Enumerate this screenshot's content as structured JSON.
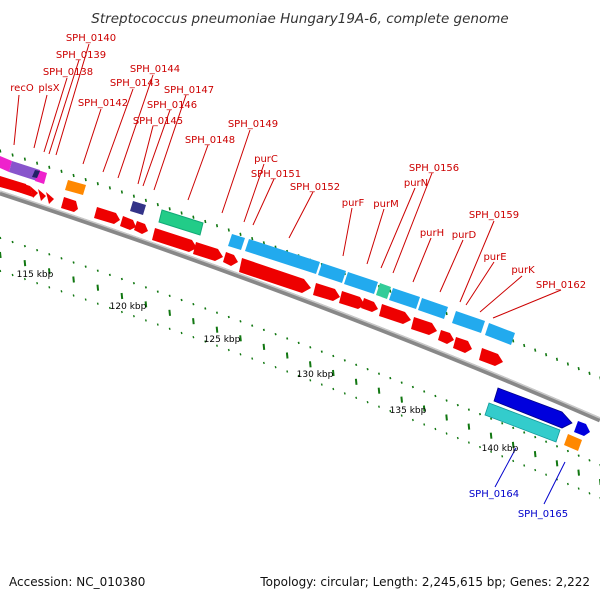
{
  "title": "Streptococcus pneumoniae Hungary19A-6, complete genome",
  "footer": {
    "accession": "Accession: NC_010380",
    "summary": "Topology: circular; Length: 2,245,615 bp; Genes: 2,222"
  },
  "ruler": {
    "ticks": [
      "115 kbp",
      "120 kbp",
      "125 kbp",
      "130 kbp",
      "135 kbp",
      "140 kbp"
    ]
  },
  "labels": {
    "recO": "recO",
    "plsX": "plsX",
    "SPH_0138": "SPH_0138",
    "SPH_0139": "SPH_0139",
    "SPH_0140": "SPH_0140",
    "SPH_0142": "SPH_0142",
    "SPH_0143": "SPH_0143",
    "SPH_0144": "SPH_0144",
    "SPH_0145": "SPH_0145",
    "SPH_0146": "SPH_0146",
    "SPH_0147": "SPH_0147",
    "SPH_0148": "SPH_0148",
    "SPH_0149": "SPH_0149",
    "purC": "purC",
    "SPH_0151": "SPH_0151",
    "SPH_0152": "SPH_0152",
    "purF": "purF",
    "purM": "purM",
    "purN": "purN",
    "SPH_0156": "SPH_0156",
    "purH": "purH",
    "purD": "purD",
    "SPH_0159": "SPH_0159",
    "purE": "purE",
    "purK": "purK",
    "SPH_0162": "SPH_0162",
    "SPH_0164": "SPH_0164",
    "SPH_0165": "SPH_0165"
  },
  "colors": {
    "cds": "#ee0000",
    "purine": "#22aaee",
    "aqua": "#33cccc",
    "blue": "#0000dd",
    "orange": "#ff8800",
    "navy": "#333388",
    "green": "#22cc88",
    "magenta": "#ee22cc",
    "purple": "#8855cc",
    "label_red": "#cc0000",
    "label_blue": "#0000cc",
    "tick_green": "#117711"
  }
}
